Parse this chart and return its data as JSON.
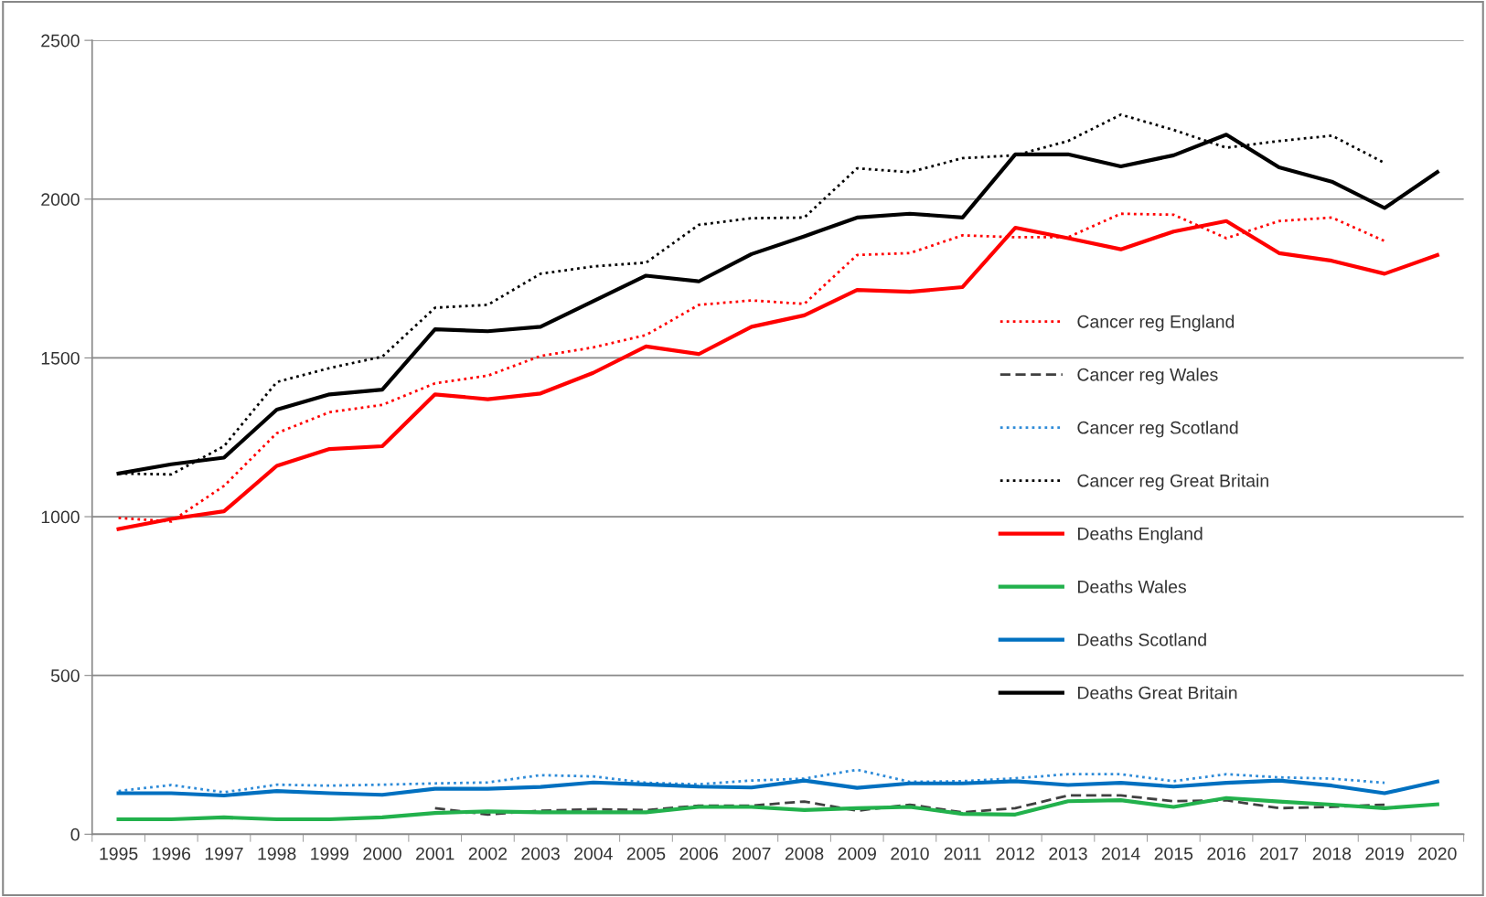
{
  "chart_data": {
    "type": "line",
    "categories": [
      "1995",
      "1996",
      "1997",
      "1998",
      "1999",
      "2000",
      "2001",
      "2002",
      "2003",
      "2004",
      "2005",
      "2006",
      "2007",
      "2008",
      "2009",
      "2010",
      "2011",
      "2012",
      "2013",
      "2014",
      "2015",
      "2016",
      "2017",
      "2018",
      "2019",
      "2020"
    ],
    "ylim": [
      0,
      2500
    ],
    "yticks": [
      0,
      500,
      1000,
      1500,
      2000,
      2500
    ],
    "grid": "y",
    "legend": "center right",
    "marker": "none",
    "series": [
      {
        "name": "Cancer reg England",
        "color": "#ff0000",
        "line_style": "dotted",
        "values": [
          996,
          985,
          1097,
          1263,
          1329,
          1352,
          1420,
          1444,
          1506,
          1533,
          1572,
          1667,
          1681,
          1670,
          1824,
          1830,
          1886,
          1880,
          1880,
          1954,
          1951,
          1877,
          1931,
          1942,
          1868,
          null
        ]
      },
      {
        "name": "Cancer reg Wales",
        "color": "#404040",
        "line_style": "dashed",
        "values": [
          null,
          null,
          null,
          null,
          null,
          null,
          82,
          62,
          74,
          79,
          76,
          90,
          90,
          103,
          74,
          93,
          69,
          82,
          122,
          122,
          104,
          107,
          82,
          86,
          93,
          null
        ]
      },
      {
        "name": "Cancer reg Scotland",
        "color": "#2e8bd8",
        "line_style": "dotted",
        "values": [
          136,
          155,
          132,
          156,
          153,
          156,
          160,
          163,
          186,
          182,
          162,
          157,
          169,
          175,
          203,
          165,
          167,
          176,
          189,
          189,
          167,
          189,
          179,
          175,
          162,
          null
        ]
      },
      {
        "name": "Cancer reg Great Britain",
        "color": "#000000",
        "line_style": "dotted",
        "values": [
          1136,
          1133,
          1222,
          1424,
          1468,
          1504,
          1658,
          1667,
          1765,
          1788,
          1800,
          1919,
          1940,
          1942,
          2097,
          2085,
          2129,
          2138,
          2183,
          2266,
          2218,
          2162,
          2183,
          2200,
          2114,
          null
        ]
      },
      {
        "name": "Deaths England",
        "color": "#ff0000",
        "line_style": "solid",
        "values": [
          961,
          993,
          1017,
          1160,
          1213,
          1222,
          1385,
          1370,
          1388,
          1453,
          1536,
          1512,
          1598,
          1634,
          1714,
          1708,
          1723,
          1910,
          1877,
          1842,
          1898,
          1931,
          1830,
          1806,
          1765,
          1824
        ]
      },
      {
        "name": "Deaths Wales",
        "color": "#22b14c",
        "line_style": "solid",
        "values": [
          47,
          47,
          53,
          47,
          47,
          53,
          67,
          72,
          69,
          69,
          69,
          86,
          86,
          76,
          82,
          86,
          64,
          62,
          104,
          107,
          86,
          114,
          103,
          93,
          82,
          94
        ]
      },
      {
        "name": "Deaths Scotland",
        "color": "#0070c0",
        "line_style": "solid",
        "values": [
          129,
          129,
          122,
          136,
          129,
          124,
          143,
          143,
          149,
          163,
          157,
          150,
          147,
          169,
          146,
          160,
          160,
          167,
          155,
          162,
          150,
          162,
          169,
          153,
          129,
          166
        ]
      },
      {
        "name": "Deaths Great Britain",
        "color": "#000000",
        "line_style": "solid",
        "values": [
          1136,
          1165,
          1186,
          1337,
          1385,
          1400,
          1590,
          1584,
          1598,
          1679,
          1759,
          1741,
          1827,
          1883,
          1942,
          1954,
          1942,
          2141,
          2141,
          2103,
          2138,
          2203,
          2100,
          2055,
          1972,
          2085
        ]
      }
    ]
  }
}
